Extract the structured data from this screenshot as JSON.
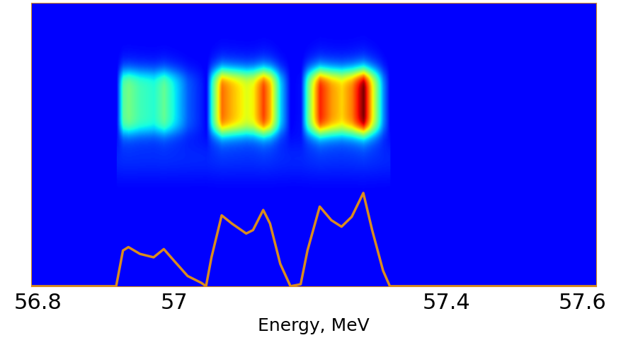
{
  "chart_data": {
    "type": "line",
    "xlabel": "Energy, MeV",
    "x": [
      56.79,
      56.915,
      56.925,
      56.933,
      56.95,
      56.97,
      56.985,
      57.0,
      57.02,
      57.04,
      57.047,
      57.055,
      57.07,
      57.085,
      57.106,
      57.116,
      57.131,
      57.141,
      57.156,
      57.171,
      57.186,
      57.196,
      57.214,
      57.231,
      57.246,
      57.261,
      57.278,
      57.291,
      57.307,
      57.317,
      57.62
    ],
    "values": [
      0,
      0,
      0.126,
      0.138,
      0.114,
      0.102,
      0.131,
      0.09,
      0.036,
      0.012,
      0,
      0.102,
      0.25,
      0.221,
      0.186,
      0.198,
      0.269,
      0.221,
      0.079,
      0,
      0.007,
      0.126,
      0.281,
      0.233,
      0.21,
      0.245,
      0.329,
      0.198,
      0.055,
      0,
      0
    ],
    "color": "#d98c1e",
    "xlim": [
      56.79,
      57.62
    ],
    "xticks": [
      56.8,
      57,
      57.4,
      57.6
    ],
    "ylim": [
      0,
      1
    ],
    "tick_labels": "x"
  }
}
